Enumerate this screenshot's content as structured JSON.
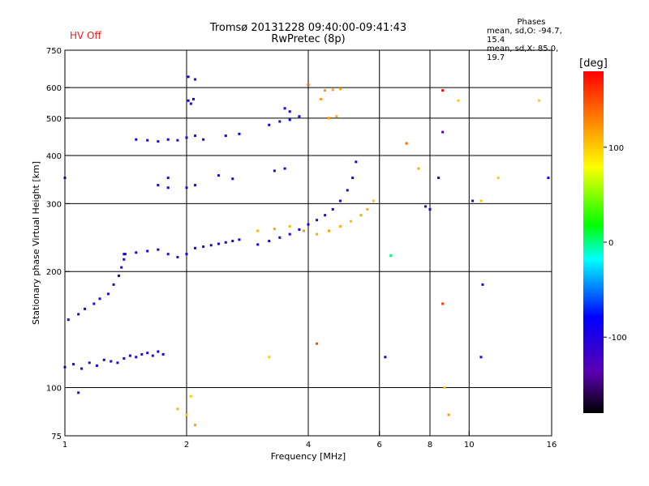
{
  "header": {
    "status": "HV Off",
    "title_line1": "Tromsø 20131228 09:40:00-09:41:43",
    "title_line2": "RwPretec (8p)",
    "stats_title": "Phases",
    "stats_o": "mean, sd,O: -94.7, 15.4",
    "stats_x": "mean, sd,X: 85.0, 19.7"
  },
  "colors": {
    "status": "#ee2222",
    "background": "#ffffff",
    "grid": "#000000"
  },
  "chart_data": {
    "type": "scatter",
    "title": "Tromsø 20131228 09:40:00-09:41:43",
    "subtitle": "RwPretec (8p)",
    "xlabel": "Frequency [MHz]",
    "ylabel": "Stationary phase Virtual Height [km]",
    "x_scale": "log",
    "y_scale": "log",
    "xlim": [
      1,
      16
    ],
    "ylim": [
      75,
      750
    ],
    "x_ticks": [
      1,
      2,
      4,
      6,
      8,
      10,
      16
    ],
    "y_ticks": [
      75,
      100,
      200,
      300,
      400,
      500,
      600,
      750
    ],
    "grid_x": [
      2,
      4,
      6,
      8,
      10
    ],
    "grid_y": [
      100,
      200,
      300,
      400,
      500,
      600
    ],
    "colorbar": {
      "label": "[deg]",
      "range": [
        -180,
        180
      ],
      "ticks": [
        100,
        0,
        -100
      ],
      "colormap": "rainbow"
    },
    "series": [
      {
        "trace": "o-low-1",
        "points": [
          [
            1.0,
            113,
            -100
          ],
          [
            1.05,
            115,
            -105
          ],
          [
            1.1,
            112,
            -98
          ],
          [
            1.15,
            116,
            -110
          ],
          [
            1.2,
            114,
            -102
          ],
          [
            1.25,
            118,
            -96
          ],
          [
            1.3,
            117,
            -104
          ],
          [
            1.35,
            116,
            -108
          ],
          [
            1.4,
            119,
            -100
          ],
          [
            1.45,
            121,
            -95
          ],
          [
            1.5,
            120,
            -103
          ],
          [
            1.55,
            122,
            -110
          ],
          [
            1.6,
            123,
            -99
          ],
          [
            1.65,
            121,
            -102
          ],
          [
            1.7,
            124,
            -88
          ],
          [
            1.75,
            122,
            -92
          ]
        ]
      },
      {
        "trace": "o-low-rise",
        "points": [
          [
            1.02,
            150,
            -100
          ],
          [
            1.08,
            155,
            -105
          ],
          [
            1.12,
            160,
            -95
          ],
          [
            1.18,
            165,
            -110
          ],
          [
            1.22,
            170,
            -100
          ],
          [
            1.28,
            175,
            -98
          ],
          [
            1.32,
            185,
            -104
          ],
          [
            1.36,
            195,
            -96
          ],
          [
            1.38,
            205,
            -110
          ],
          [
            1.4,
            215,
            -100
          ],
          [
            1.41,
            222,
            -102
          ]
        ]
      },
      {
        "trace": "o-low-2",
        "points": [
          [
            1.4,
            222,
            -100
          ],
          [
            1.5,
            224,
            -105
          ],
          [
            1.6,
            226,
            -98
          ],
          [
            1.7,
            228,
            -102
          ],
          [
            1.8,
            222,
            -104
          ],
          [
            1.9,
            218,
            -110
          ],
          [
            2.0,
            222,
            -96
          ],
          [
            2.1,
            230,
            -100
          ],
          [
            2.2,
            232,
            -105
          ],
          [
            2.3,
            234,
            -98
          ],
          [
            2.4,
            236,
            -102
          ],
          [
            2.5,
            238,
            -100
          ],
          [
            2.6,
            240,
            -108
          ],
          [
            2.7,
            242,
            -95
          ]
        ]
      },
      {
        "trace": "o-low-3",
        "points": [
          [
            3.0,
            235,
            -100
          ],
          [
            3.2,
            240,
            -110
          ],
          [
            3.4,
            245,
            -105
          ],
          [
            3.6,
            250,
            -98
          ],
          [
            3.8,
            257,
            -100
          ],
          [
            4.0,
            265,
            -95
          ],
          [
            4.2,
            272,
            -102
          ],
          [
            4.4,
            280,
            -110
          ],
          [
            4.6,
            290,
            -100
          ],
          [
            4.8,
            305,
            -105
          ],
          [
            5.0,
            325,
            -98
          ],
          [
            5.15,
            350,
            -100
          ],
          [
            5.25,
            385,
            -90
          ]
        ]
      },
      {
        "trace": "x-mid",
        "points": [
          [
            3.0,
            255,
            110
          ],
          [
            3.3,
            258,
            115
          ],
          [
            3.6,
            262,
            105
          ],
          [
            3.9,
            255,
            120
          ],
          [
            4.2,
            250,
            112
          ],
          [
            4.5,
            255,
            118
          ],
          [
            4.8,
            262,
            110
          ],
          [
            5.1,
            270,
            108
          ],
          [
            5.4,
            280,
            115
          ],
          [
            5.6,
            290,
            112
          ],
          [
            5.8,
            305,
            104
          ]
        ]
      },
      {
        "trace": "o-high-1",
        "points": [
          [
            1.5,
            440,
            -100
          ],
          [
            1.6,
            438,
            -108
          ],
          [
            1.7,
            435,
            -102
          ],
          [
            1.8,
            440,
            -95
          ],
          [
            1.9,
            438,
            -110
          ],
          [
            2.0,
            445,
            -100
          ],
          [
            2.1,
            450,
            -105
          ],
          [
            2.2,
            440,
            -98
          ],
          [
            2.5,
            450,
            -85
          ],
          [
            2.7,
            455,
            -80
          ],
          [
            3.2,
            480,
            -100
          ],
          [
            3.4,
            490,
            -95
          ],
          [
            3.6,
            495,
            -85
          ],
          [
            3.8,
            505,
            -92
          ]
        ]
      },
      {
        "trace": "o-high-2",
        "points": [
          [
            2.02,
            555,
            -100
          ],
          [
            2.08,
            560,
            -95
          ],
          [
            2.05,
            545,
            -102
          ],
          [
            2.1,
            630,
            -110
          ],
          [
            2.02,
            640,
            -100
          ],
          [
            3.5,
            530,
            -100
          ],
          [
            3.6,
            520,
            -105
          ]
        ]
      },
      {
        "trace": "x-high",
        "points": [
          [
            4.4,
            590,
            120
          ],
          [
            4.6,
            592,
            115
          ],
          [
            4.8,
            595,
            110
          ],
          [
            4.5,
            500,
            118
          ],
          [
            4.7,
            505,
            112
          ],
          [
            4.3,
            560,
            120
          ],
          [
            4.0,
            610,
            140
          ]
        ]
      },
      {
        "trace": "o-mid-other",
        "points": [
          [
            1.7,
            335,
            -100
          ],
          [
            1.8,
            330,
            -95
          ],
          [
            2.0,
            330,
            -105
          ],
          [
            2.1,
            335,
            -100
          ],
          [
            1.8,
            350,
            -98
          ],
          [
            2.4,
            355,
            -104
          ],
          [
            2.6,
            348,
            -90
          ],
          [
            3.3,
            365,
            -100
          ],
          [
            3.5,
            370,
            -95
          ]
        ]
      },
      {
        "trace": "scatter-other",
        "points": [
          [
            1.08,
            97,
            -110
          ],
          [
            1.0,
            350,
            -100
          ],
          [
            1.9,
            88,
            110
          ],
          [
            2.05,
            95,
            100
          ],
          [
            2.0,
            85,
            105
          ],
          [
            2.1,
            80,
            115
          ],
          [
            3.2,
            120,
            100
          ],
          [
            4.2,
            130,
            150
          ],
          [
            6.2,
            120,
            -80
          ],
          [
            6.4,
            220,
            0
          ],
          [
            7.0,
            430,
            140
          ],
          [
            7.5,
            370,
            110
          ],
          [
            7.8,
            295,
            -110
          ],
          [
            8.0,
            290,
            -100
          ],
          [
            8.4,
            350,
            -100
          ],
          [
            8.6,
            590,
            180
          ],
          [
            8.6,
            460,
            -140
          ],
          [
            8.6,
            165,
            160
          ],
          [
            8.9,
            85,
            120
          ],
          [
            8.7,
            100,
            100
          ],
          [
            9.4,
            555,
            100
          ],
          [
            10.2,
            305,
            -110
          ],
          [
            10.7,
            305,
            100
          ],
          [
            10.8,
            185,
            -100
          ],
          [
            10.7,
            120,
            -90
          ],
          [
            11.8,
            350,
            100
          ],
          [
            14.9,
            555,
            100
          ],
          [
            15.7,
            350,
            -90
          ]
        ]
      }
    ]
  }
}
